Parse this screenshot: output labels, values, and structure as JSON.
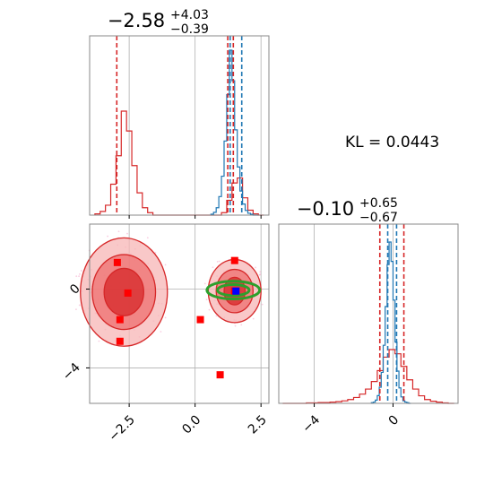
{
  "chart_data": [
    {
      "type": "histogram",
      "panel": "top-left",
      "title": {
        "main": "−2.58",
        "upper": "+4.03",
        "lower": "−0.39"
      },
      "xlim": [
        -4.0,
        2.8
      ],
      "grid": true,
      "series": [
        {
          "name": "",
          "color": "#d62728",
          "bin_edges": [
            -3.8,
            -3.6,
            -3.4,
            -3.2,
            -3.0,
            -2.8,
            -2.6,
            -2.4,
            -2.2,
            -2.0,
            -1.8,
            -1.6,
            -1.4,
            -1.2,
            -1.0,
            -0.8,
            -0.6,
            -0.4,
            -0.2,
            0.0,
            0.2,
            0.4,
            0.6,
            0.8,
            1.0,
            1.2,
            1.4,
            1.6,
            1.8,
            2.0,
            2.2,
            2.4,
            2.6
          ],
          "counts": [
            1,
            3,
            8,
            25,
            48,
            84,
            68,
            40,
            18,
            6,
            2,
            0,
            0,
            0,
            0,
            0,
            0,
            0,
            0,
            0,
            0,
            0,
            0,
            0,
            2,
            12,
            26,
            30,
            14,
            4,
            1,
            0
          ]
        },
        {
          "name": "",
          "color": "#1f77b4",
          "bin_edges": [
            0.6,
            0.7,
            0.8,
            0.9,
            1.0,
            1.1,
            1.2,
            1.3,
            1.4,
            1.5,
            1.6,
            1.7,
            1.8,
            1.9,
            2.0,
            2.1,
            2.2,
            2.3,
            2.4
          ],
          "counts": [
            1,
            3,
            8,
            20,
            42,
            80,
            130,
            178,
            145,
            92,
            52,
            26,
            12,
            5,
            2,
            1,
            0,
            0
          ]
        }
      ],
      "vlines": [
        {
          "x": -2.97,
          "color": "#d62728"
        },
        {
          "x": 1.24,
          "color": "#d62728"
        },
        {
          "x": 1.45,
          "color": "#d62728"
        },
        {
          "x": 1.33,
          "color": "#1f77b4"
        },
        {
          "x": 1.77,
          "color": "#1f77b4"
        }
      ]
    },
    {
      "type": "contour",
      "panel": "bottom-left",
      "xlim": [
        -4.0,
        2.8
      ],
      "ylim": [
        -5.8,
        3.3
      ],
      "xticks": [
        -2.5,
        0.0,
        2.5
      ],
      "xtick_labels": [
        "−2.5",
        "0.0",
        "2.5"
      ],
      "yticks": [
        0,
        -4
      ],
      "ytick_labels": [
        "0",
        "−4"
      ],
      "grid": true,
      "contours": [
        {
          "name": "",
          "color": "#d62728",
          "blobs": [
            {
              "cx": -2.7,
              "cy": -0.15,
              "rx": [
                1.65,
                1.2,
                0.75
              ],
              "ry": [
                2.75,
                1.9,
                1.2
              ]
            },
            {
              "cx": 1.5,
              "cy": -0.1,
              "rx": [
                1.0,
                0.7,
                0.4
              ],
              "ry": [
                1.6,
                1.1,
                0.7
              ]
            }
          ]
        },
        {
          "name": "",
          "color": "#2ca02c",
          "blobs": [
            {
              "cx": 1.45,
              "cy": -0.05,
              "rx": [
                1.0,
                0.6
              ],
              "ry": [
                0.45,
                0.28
              ]
            }
          ]
        }
      ],
      "points": [
        {
          "x": -2.95,
          "y": 1.35,
          "color": "#ff0000",
          "marker": "square"
        },
        {
          "x": -2.55,
          "y": -0.2,
          "color": "#ff0000",
          "marker": "square"
        },
        {
          "x": -2.85,
          "y": -1.55,
          "color": "#ff0000",
          "marker": "square"
        },
        {
          "x": -2.85,
          "y": -2.65,
          "color": "#ff0000",
          "marker": "square"
        },
        {
          "x": 0.2,
          "y": -1.55,
          "color": "#ff0000",
          "marker": "square"
        },
        {
          "x": 0.95,
          "y": -4.35,
          "color": "#ff0000",
          "marker": "square"
        },
        {
          "x": 1.5,
          "y": 1.45,
          "color": "#ff0000",
          "marker": "square"
        },
        {
          "x": 1.5,
          "y": -0.1,
          "color": "#ff0000",
          "marker": "square"
        },
        {
          "x": 1.55,
          "y": -0.1,
          "color": "#0000ff",
          "marker": "square"
        }
      ]
    },
    {
      "type": "histogram",
      "panel": "bottom-right",
      "title": {
        "main": "−0.10",
        "upper": "+0.65",
        "lower": "−0.67"
      },
      "xlim": [
        -5.8,
        3.3
      ],
      "xticks": [
        -4,
        0
      ],
      "xtick_labels": [
        "−4",
        "0"
      ],
      "grid": true,
      "series": [
        {
          "name": "",
          "color": "#d62728",
          "bin_edges": [
            -5.6,
            -5.3,
            -5.0,
            -4.7,
            -4.4,
            -4.1,
            -3.8,
            -3.5,
            -3.2,
            -2.9,
            -2.6,
            -2.3,
            -2.0,
            -1.7,
            -1.4,
            -1.1,
            -0.8,
            -0.5,
            -0.2,
            0.1,
            0.4,
            0.7,
            1.0,
            1.3,
            1.6,
            1.9,
            2.2,
            2.5,
            2.8,
            3.1
          ],
          "counts": [
            0,
            0,
            0,
            0,
            1,
            1,
            2,
            2,
            3,
            4,
            6,
            9,
            14,
            22,
            34,
            52,
            78,
            110,
            128,
            118,
            88,
            56,
            34,
            18,
            9,
            5,
            3,
            1,
            0
          ]
        },
        {
          "name": "",
          "color": "#1f77b4",
          "bin_edges": [
            -1.1,
            -1.0,
            -0.9,
            -0.8,
            -0.7,
            -0.6,
            -0.5,
            -0.4,
            -0.3,
            -0.2,
            -0.1,
            0.0,
            0.1,
            0.2,
            0.3,
            0.4,
            0.5,
            0.6,
            0.7,
            0.8,
            0.9
          ],
          "counts": [
            1,
            2,
            5,
            12,
            25,
            48,
            90,
            150,
            215,
            250,
            220,
            160,
            95,
            50,
            24,
            10,
            4,
            2,
            1,
            0
          ]
        }
      ],
      "vlines": [
        {
          "x": -0.67,
          "color": "#d62728"
        },
        {
          "x": 0.55,
          "color": "#d62728"
        },
        {
          "x": -0.27,
          "color": "#1f77b4"
        },
        {
          "x": 0.18,
          "color": "#1f77b4"
        }
      ]
    }
  ],
  "annotation": {
    "kl": "KL = 0.0443"
  }
}
